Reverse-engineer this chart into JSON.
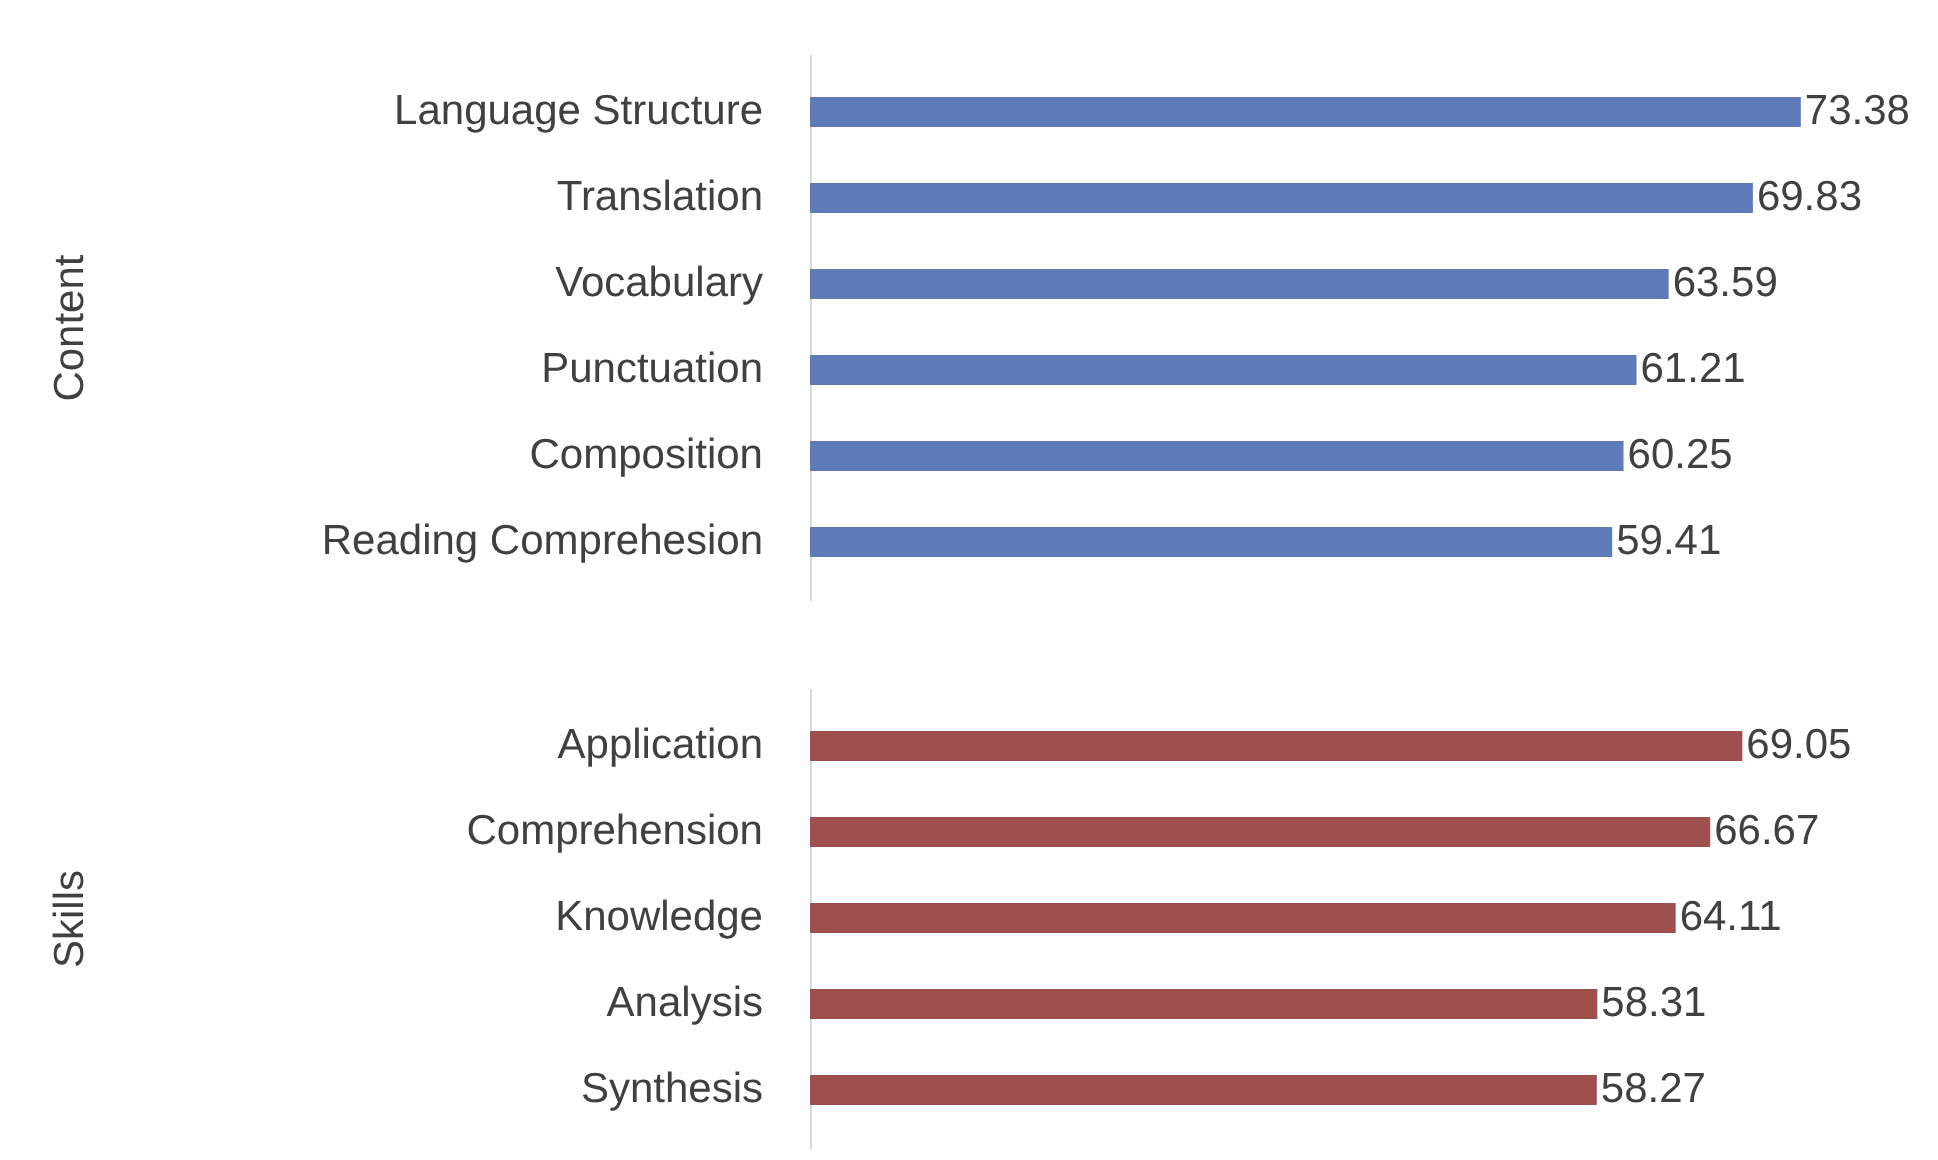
{
  "chart_data": [
    {
      "type": "bar",
      "orientation": "horizontal",
      "ylabel": "Content",
      "categories": [
        "Language Structure",
        "Translation",
        "Vocabulary",
        "Punctuation",
        "Composition",
        "Reading Comprehesion"
      ],
      "values": [
        73.38,
        69.83,
        63.59,
        61.21,
        60.25,
        59.41
      ],
      "color": "#5f7ab9",
      "data_labels": true
    },
    {
      "type": "bar",
      "orientation": "horizontal",
      "ylabel": "Skills",
      "categories": [
        "Application",
        "Comprehension",
        "Knowledge",
        "Analysis",
        "Synthesis"
      ],
      "values": [
        69.05,
        66.67,
        64.11,
        58.31,
        58.27
      ],
      "color": "#a04f4f",
      "data_labels": true
    }
  ]
}
